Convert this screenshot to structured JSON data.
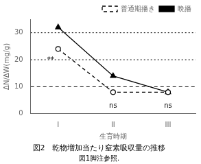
{
  "chart_data": {
    "type": "line",
    "title": "図2　乾物増加当たり窒素吸収量の推移",
    "footnote": "図1脚注参照.",
    "xlabel": "生育時期",
    "ylabel": "ΔN/ΔW(mg/g)",
    "x": [
      1,
      2,
      3
    ],
    "xlim": [
      0.5,
      3.5
    ],
    "xticks": [
      {
        "value": 1,
        "label": "I"
      },
      {
        "value": 2,
        "label": "II"
      },
      {
        "value": 3,
        "label": "III"
      }
    ],
    "ylim": [
      0,
      35
    ],
    "yticks": [
      0,
      10,
      20,
      30
    ],
    "grid": false,
    "legend": "upper right",
    "series": [
      {
        "name": "普通期播き",
        "color": "#000000",
        "values": [
          24,
          8,
          8
        ],
        "marker": "open_circle",
        "line_style": "dashed"
      },
      {
        "name": "晩播",
        "color": "#000000",
        "values": [
          32,
          14,
          8
        ],
        "marker": "triangle",
        "line_style": "solid"
      }
    ],
    "hlines": [
      {
        "y": 20,
        "line_style": "dotted"
      },
      {
        "y": 30,
        "line_style": "dotted"
      },
      {
        "y": 10,
        "line_style": "dashed"
      }
    ],
    "annotations": [
      {
        "text": "**",
        "x": 1,
        "y": 20
      },
      {
        "text": "ns",
        "x": 2,
        "y": 4.5
      },
      {
        "text": "ns",
        "x": 3,
        "y": 4.5
      }
    ]
  }
}
